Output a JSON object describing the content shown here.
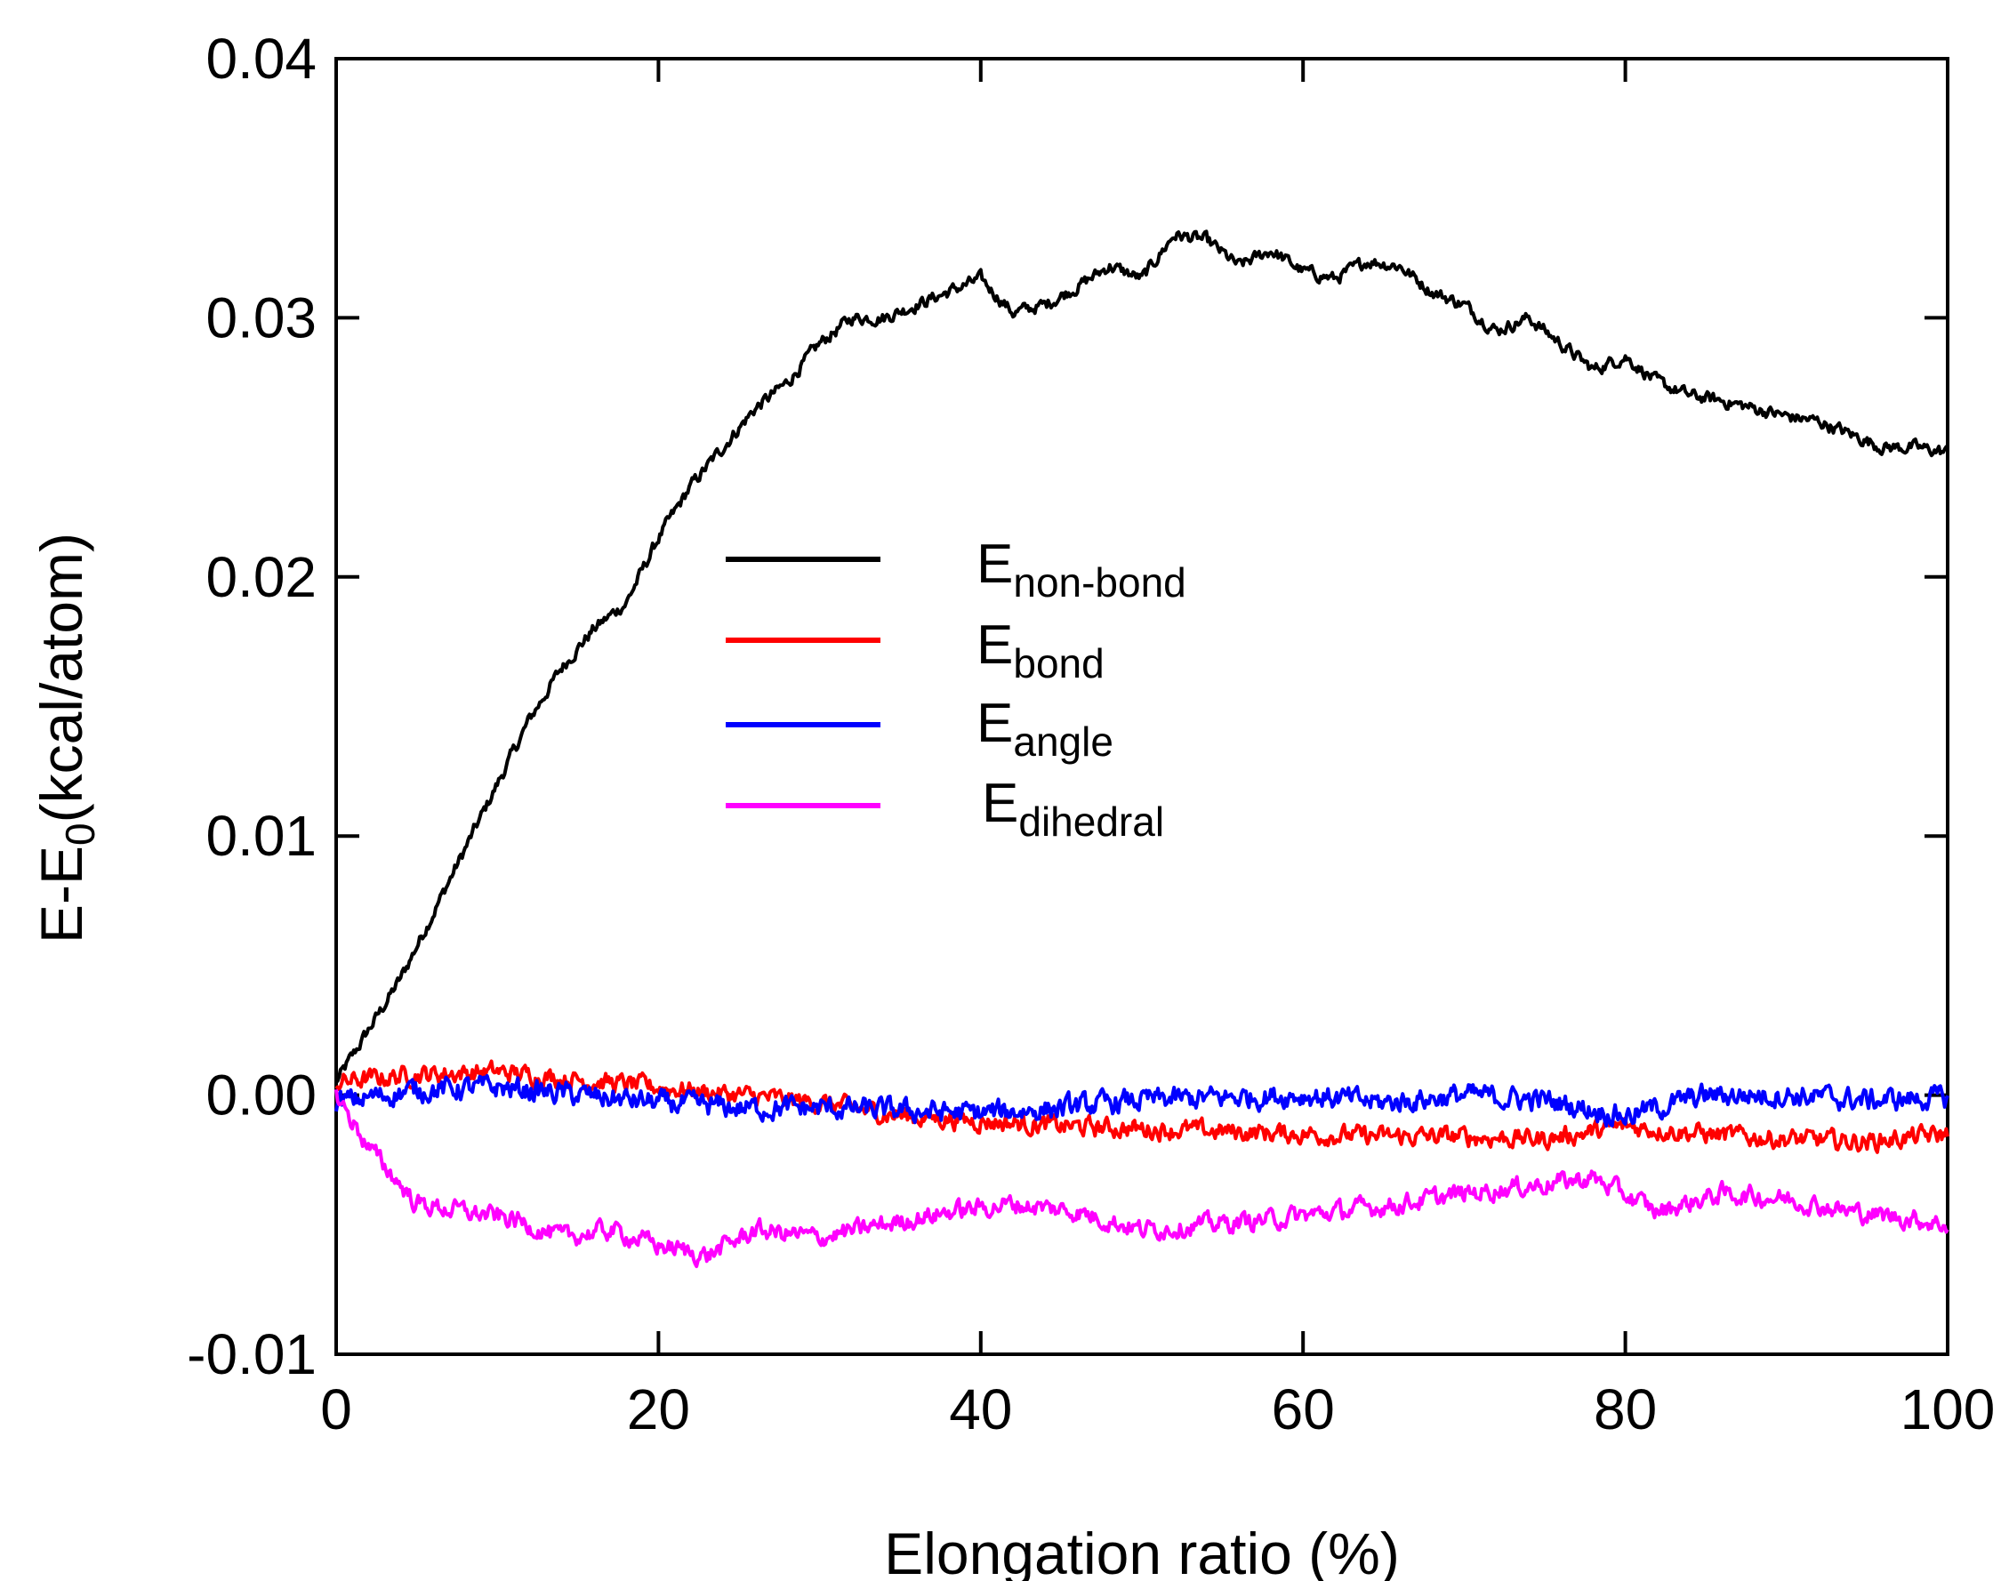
{
  "chart_data": {
    "type": "line",
    "title": "",
    "xlabel": "Elongation ratio (%)",
    "ylabel_main": "E-E",
    "ylabel_sub": "0",
    "ylabel_tail": "(kcal/atom)",
    "xlim": [
      0,
      100
    ],
    "ylim": [
      -0.01,
      0.04
    ],
    "xticks": [
      0,
      20,
      40,
      60,
      80,
      100
    ],
    "xtick_labels": [
      "0",
      "20",
      "40",
      "60",
      "80",
      "100"
    ],
    "yticks": [
      -0.01,
      0.0,
      0.01,
      0.02,
      0.03,
      0.04
    ],
    "ytick_labels": [
      "-0.01",
      "0.00",
      "0.01",
      "0.02",
      "0.03",
      "0.04"
    ],
    "grid": false,
    "legend_position": "center",
    "series": [
      {
        "name": "E non-bond",
        "label_main": "E",
        "label_sub": "non-bond",
        "color": "#000000",
        "x": [
          0,
          2,
          4,
          6,
          8,
          10,
          12,
          14,
          16,
          18,
          20,
          22,
          24,
          26,
          28,
          30,
          32,
          34,
          36,
          38,
          40,
          42,
          44,
          46,
          48,
          50,
          52,
          54,
          56,
          58,
          60,
          62,
          64,
          66,
          68,
          70,
          72,
          74,
          76,
          78,
          80,
          82,
          84,
          86,
          88,
          90,
          92,
          94,
          96,
          98,
          100
        ],
        "y": [
          0.0005,
          0.0025,
          0.0045,
          0.007,
          0.0095,
          0.012,
          0.0145,
          0.0165,
          0.018,
          0.019,
          0.0215,
          0.0235,
          0.025,
          0.0265,
          0.0275,
          0.029,
          0.03,
          0.03,
          0.0305,
          0.031,
          0.0315,
          0.0302,
          0.0305,
          0.0312,
          0.032,
          0.0315,
          0.0332,
          0.033,
          0.032,
          0.0326,
          0.0318,
          0.0315,
          0.0322,
          0.032,
          0.031,
          0.0305,
          0.0295,
          0.03,
          0.029,
          0.028,
          0.0285,
          0.0275,
          0.027,
          0.0268,
          0.0265,
          0.0262,
          0.026,
          0.0255,
          0.025,
          0.025,
          0.0248
        ]
      },
      {
        "name": "E bond",
        "label_main": "E",
        "label_sub": "bond",
        "color": "#ff0000",
        "x": [
          0,
          5,
          10,
          15,
          20,
          25,
          30,
          35,
          40,
          45,
          50,
          55,
          60,
          65,
          70,
          75,
          80,
          85,
          90,
          95,
          100
        ],
        "y": [
          0.0005,
          0.0008,
          0.0009,
          0.0006,
          0.0003,
          0.0,
          -0.0003,
          -0.0008,
          -0.001,
          -0.0012,
          -0.0013,
          -0.0014,
          -0.0015,
          -0.0016,
          -0.0016,
          -0.0017,
          -0.0012,
          -0.0015,
          -0.0017,
          -0.0018,
          -0.0015
        ]
      },
      {
        "name": "E angle",
        "label_main": "E",
        "label_sub": "angle",
        "color": "#0000ff",
        "x": [
          0,
          5,
          10,
          15,
          20,
          25,
          30,
          35,
          40,
          45,
          50,
          55,
          60,
          65,
          70,
          75,
          80,
          85,
          90,
          95,
          100
        ],
        "y": [
          -0.0003,
          0.0002,
          0.0003,
          0.0,
          -0.0003,
          -0.0005,
          -0.0005,
          -0.0006,
          -0.0007,
          -0.0005,
          -0.0002,
          -0.0001,
          0.0,
          -0.0003,
          0.0,
          -0.0002,
          -0.0008,
          0.0,
          0.0,
          -0.0002,
          -0.0001
        ]
      },
      {
        "name": "E dihedral",
        "label_main": "E",
        "label_sub": "dihedral",
        "color": "#ff00ff",
        "x": [
          0,
          2,
          5,
          8,
          11,
          14,
          17,
          20,
          23,
          26,
          30,
          34,
          38,
          42,
          46,
          50,
          54,
          58,
          62,
          66,
          70,
          74,
          78,
          82,
          86,
          90,
          94,
          98,
          100
        ],
        "y": [
          0.0,
          -0.002,
          -0.0042,
          -0.0045,
          -0.0048,
          -0.0055,
          -0.0052,
          -0.0058,
          -0.0062,
          -0.0052,
          -0.0055,
          -0.005,
          -0.0045,
          -0.0042,
          -0.0045,
          -0.0052,
          -0.005,
          -0.0048,
          -0.0045,
          -0.0042,
          -0.0038,
          -0.0035,
          -0.0032,
          -0.0045,
          -0.0038,
          -0.004,
          -0.0045,
          -0.0048,
          -0.005
        ]
      }
    ]
  }
}
